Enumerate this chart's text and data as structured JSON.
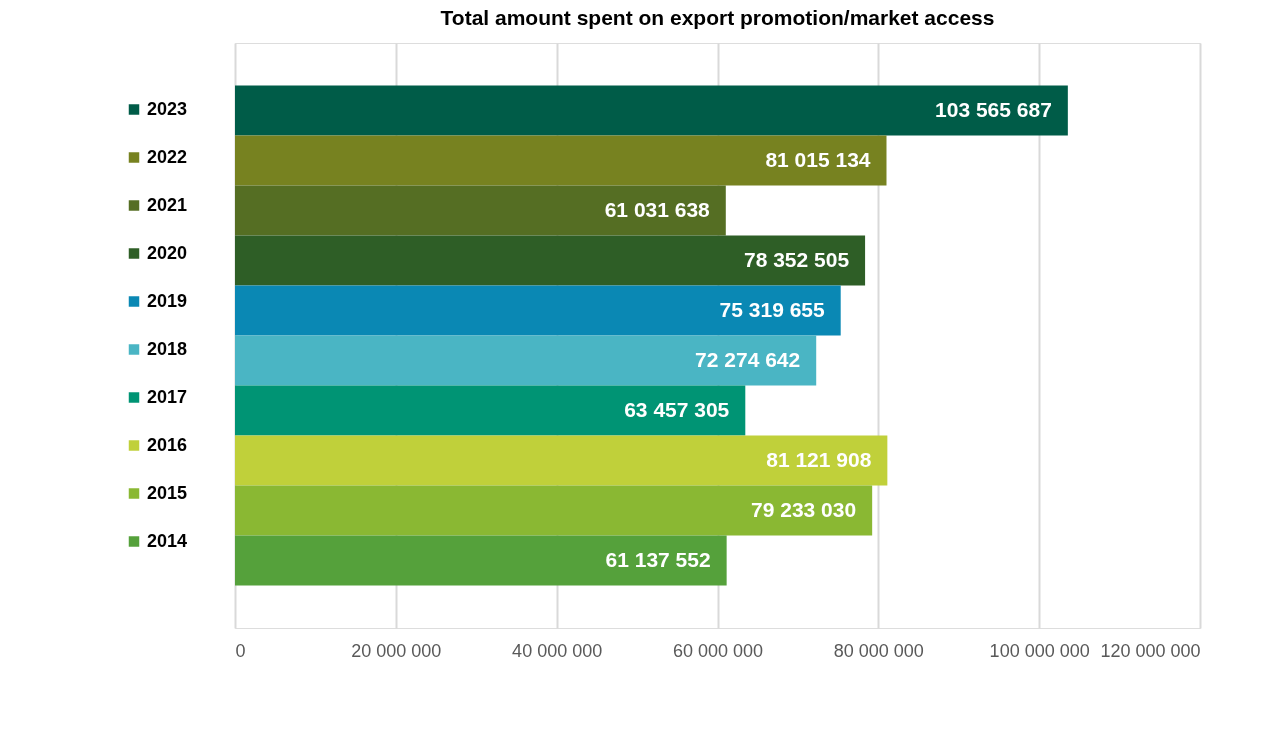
{
  "chart_data": {
    "type": "bar",
    "orientation": "horizontal",
    "title": "Total amount spent on export promotion/market access",
    "categories": [
      "2023",
      "2022",
      "2021",
      "2020",
      "2019",
      "2018",
      "2017",
      "2016",
      "2015",
      "2014"
    ],
    "values": [
      103565687,
      81015134,
      61031638,
      78352505,
      75319655,
      72274642,
      63457305,
      81121908,
      79233030,
      61137552
    ],
    "colors": [
      "#005c48",
      "#778220",
      "#556e23",
      "#2e5e26",
      "#0a88b4",
      "#4ab5c4",
      "#009474",
      "#c0d03a",
      "#8ab833",
      "#55a13b"
    ],
    "xlim": [
      0,
      120000000
    ],
    "xticks": [
      0,
      {
        "value": 20000000,
        "label": "20 000 000"
      },
      {
        "value": 40000000,
        "label": "40 000 000"
      },
      {
        "value": 60000000,
        "label": "60 000 000"
      },
      {
        "value": 80000000,
        "label": "80 000 000"
      },
      {
        "value": 100000000,
        "label": "100 000 000"
      },
      {
        "value": 120000000,
        "label": "120 000 000"
      }
    ],
    "grid": "x",
    "data_labels": true
  }
}
